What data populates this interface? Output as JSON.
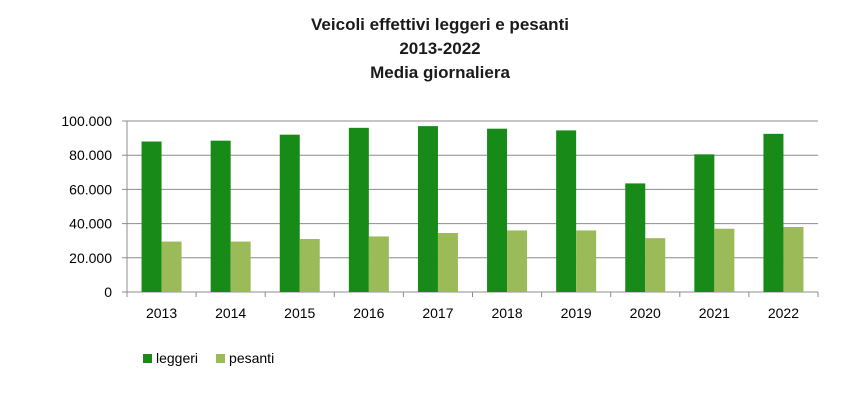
{
  "chart_data": {
    "type": "bar",
    "title_lines": [
      "Veicoli effettivi leggeri e pesanti",
      "2013-2022",
      "Media giornaliera"
    ],
    "categories": [
      "2013",
      "2014",
      "2015",
      "2016",
      "2017",
      "2018",
      "2019",
      "2020",
      "2021",
      "2022"
    ],
    "series": [
      {
        "name": "leggeri",
        "color": "#178a17",
        "values": [
          88000,
          88500,
          92000,
          96000,
          97000,
          95500,
          94500,
          63500,
          80500,
          92500
        ]
      },
      {
        "name": "pesanti",
        "color": "#9bbb59",
        "values": [
          29500,
          29500,
          31000,
          32500,
          34500,
          36000,
          36000,
          31500,
          37000,
          38000
        ]
      }
    ],
    "ylim": [
      0,
      100000
    ],
    "y_ticks": [
      {
        "value": 0,
        "label": "0"
      },
      {
        "value": 20000,
        "label": "20.000"
      },
      {
        "value": 40000,
        "label": "40.000"
      },
      {
        "value": 60000,
        "label": "60.000"
      },
      {
        "value": 80000,
        "label": "80.000"
      },
      {
        "value": 100000,
        "label": "100.000"
      }
    ],
    "grid": true,
    "legend_position": "bottom-left",
    "xlabel": "",
    "ylabel": ""
  }
}
